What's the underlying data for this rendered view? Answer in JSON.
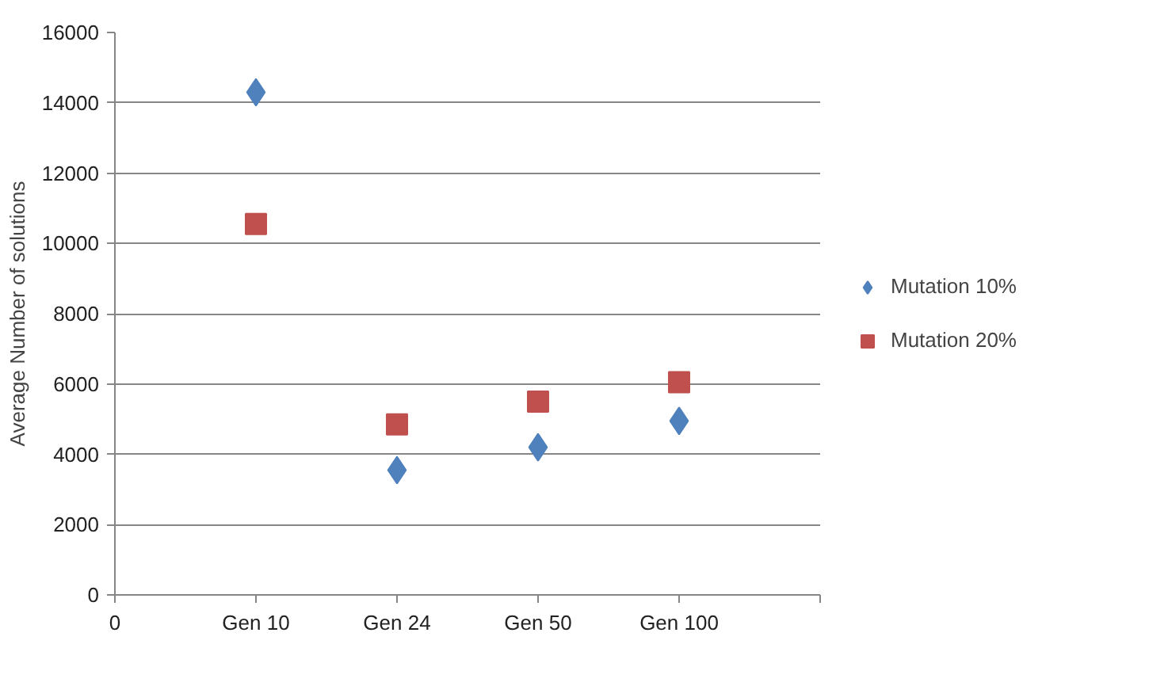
{
  "chart_data": {
    "type": "scatter",
    "ylabel": "Average Number of solutions",
    "categories": [
      "Gen 10",
      "Gen 24",
      "Gen 50",
      "Gen 100"
    ],
    "annotations": [
      "0"
    ],
    "series": [
      {
        "name": "Mutation 10%",
        "color": "#4f81bd",
        "marker": "diamond",
        "values": [
          14300,
          3550,
          4200,
          4950
        ]
      },
      {
        "name": "Mutation 20%",
        "color": "#c0504d",
        "marker": "square",
        "values": [
          10550,
          4850,
          5500,
          6050
        ]
      }
    ],
    "ylim": [
      0,
      16000
    ],
    "yticks": [
      0,
      2000,
      4000,
      6000,
      8000,
      10000,
      12000,
      14000,
      16000
    ],
    "grid": "y",
    "legend": "right"
  }
}
